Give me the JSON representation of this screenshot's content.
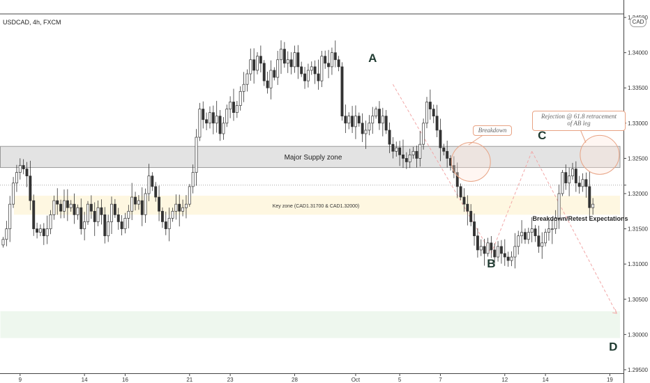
{
  "header": {
    "symbol": "USDCAD, 4h, FXCM",
    "currency_badge": "CAD"
  },
  "chart_data": {
    "type": "candlestick",
    "ylim": [
      1.2945,
      1.3455
    ],
    "yticks": [
      "1.29500",
      "1.30000",
      "1.30500",
      "1.31000",
      "1.31500",
      "1.32000",
      "1.32500",
      "1.33000",
      "1.33500",
      "1.34000",
      "1.34500"
    ],
    "xticks": [
      {
        "label": "9",
        "i": 5
      },
      {
        "label": "14",
        "i": 24
      },
      {
        "label": "16",
        "i": 36
      },
      {
        "label": "21",
        "i": 55
      },
      {
        "label": "23",
        "i": 67
      },
      {
        "label": "28",
        "i": 86
      },
      {
        "label": "Oct",
        "i": 104
      },
      {
        "label": "5",
        "i": 117
      },
      {
        "label": "7",
        "i": 129
      },
      {
        "label": "12",
        "i": 148
      },
      {
        "label": "14",
        "i": 160
      },
      {
        "label": "19",
        "i": 179
      }
    ],
    "last_price": 1.3212,
    "closes": [
      1.3135,
      1.315,
      1.3185,
      1.3215,
      1.323,
      1.324,
      1.3235,
      1.3225,
      1.319,
      1.315,
      1.3145,
      1.315,
      1.314,
      1.315,
      1.317,
      1.319,
      1.3185,
      1.3175,
      1.319,
      1.318,
      1.3185,
      1.317,
      1.318,
      1.315,
      1.316,
      1.3185,
      1.3175,
      1.316,
      1.318,
      1.317,
      1.314,
      1.316,
      1.3185,
      1.317,
      1.316,
      1.315,
      1.3165,
      1.3175,
      1.3195,
      1.3185,
      1.319,
      1.317,
      1.32,
      1.3225,
      1.321,
      1.3195,
      1.3175,
      1.316,
      1.315,
      1.3165,
      1.3175,
      1.3185,
      1.3175,
      1.318,
      1.3185,
      1.321,
      1.323,
      1.328,
      1.332,
      1.3305,
      1.33,
      1.3315,
      1.33,
      1.331,
      1.3285,
      1.33,
      1.332,
      1.333,
      1.3315,
      1.3325,
      1.3345,
      1.3355,
      1.337,
      1.339,
      1.3375,
      1.3395,
      1.3385,
      1.336,
      1.335,
      1.3375,
      1.3365,
      1.339,
      1.3405,
      1.3385,
      1.339,
      1.338,
      1.34,
      1.338,
      1.337,
      1.336,
      1.3375,
      1.338,
      1.337,
      1.336,
      1.3395,
      1.3385,
      1.338,
      1.34,
      1.339,
      1.338,
      1.331,
      1.33,
      1.331,
      1.3295,
      1.331,
      1.33,
      1.3285,
      1.329,
      1.33,
      1.331,
      1.332,
      1.33,
      1.331,
      1.329,
      1.327,
      1.326,
      1.3265,
      1.3255,
      1.325,
      1.3245,
      1.3255,
      1.326,
      1.325,
      1.327,
      1.33,
      1.333,
      1.332,
      1.331,
      1.329,
      1.3265,
      1.326,
      1.325,
      1.324,
      1.323,
      1.321,
      1.3195,
      1.3185,
      1.3175,
      1.316,
      1.314,
      1.312,
      1.3125,
      1.3115,
      1.313,
      1.312,
      1.311,
      1.3125,
      1.3115,
      1.311,
      1.3105,
      1.311,
      1.3125,
      1.314,
      1.3145,
      1.3135,
      1.3145,
      1.315,
      1.314,
      1.3125,
      1.313,
      1.3145,
      1.315,
      1.315,
      1.3165,
      1.32,
      1.323,
      1.3215,
      1.3225,
      1.3235,
      1.3215,
      1.321,
      1.322,
      1.321,
      1.318,
      1.3185
    ],
    "zones": [
      {
        "name": "major-supply",
        "label": "Major Supply zone",
        "low": 1.3237,
        "high": 1.3267,
        "x_start": 0,
        "x_end": 182,
        "color": "#e3e3e3"
      },
      {
        "name": "key-zone",
        "label": "Key zone (CAD1.31700 & CAD1.32000)",
        "low": 1.317,
        "high": 1.3197,
        "x_start": 4,
        "x_end": 182,
        "color": "#fef7e1"
      },
      {
        "name": "target-zone",
        "label": "",
        "low": 1.2995,
        "high": 1.3033,
        "x_start": 0,
        "x_end": 182,
        "color": "#eef7ee"
      }
    ],
    "points": [
      {
        "label": "A",
        "i": 109,
        "price": 1.3387
      },
      {
        "label": "B",
        "i": 144,
        "price": 1.3095
      },
      {
        "label": "C",
        "i": 159,
        "price": 1.3277
      },
      {
        "label": "D",
        "i": 180,
        "price": 1.2977
      }
    ],
    "path_lines": [
      {
        "from": {
          "i": 115,
          "price": 1.3355
        },
        "to": {
          "i": 144,
          "price": 1.3115
        }
      },
      {
        "from": {
          "i": 144,
          "price": 1.3115
        },
        "to": {
          "i": 156,
          "price": 1.326
        }
      },
      {
        "from": {
          "i": 156,
          "price": 1.326
        },
        "to": {
          "i": 181,
          "price": 1.303
        }
      }
    ],
    "circles": [
      {
        "i": 138,
        "price": 1.3245
      },
      {
        "i": 176,
        "price": 1.3255
      }
    ],
    "annotations": {
      "breakdown": "Breakdown",
      "rejection_line1": "Rejection @ 61.8 retracement",
      "rejection_line2": "of AB leg",
      "retest": "Breakdown/Retest Expectations"
    }
  },
  "colors": {
    "bull": "#ffffff",
    "bear": "#333333",
    "outline": "#333333",
    "zone_border": "#999999",
    "circle": "#e8a283"
  }
}
